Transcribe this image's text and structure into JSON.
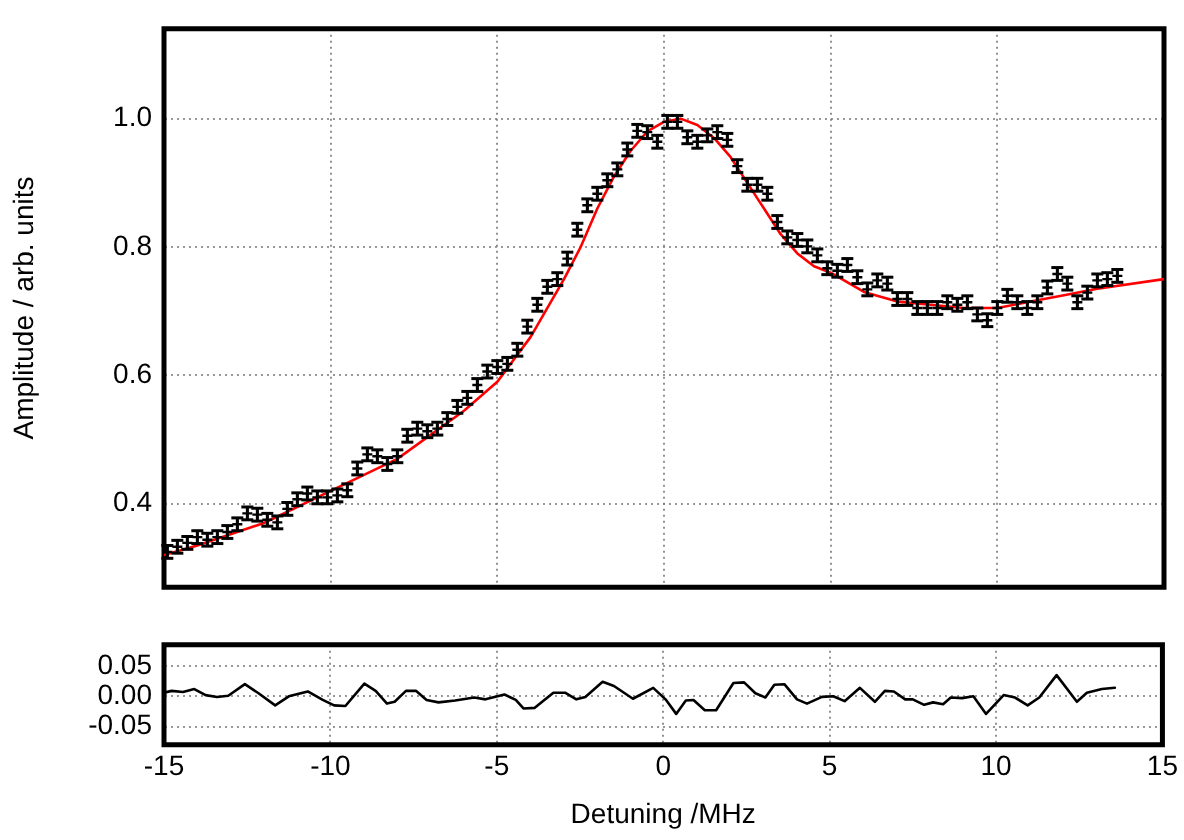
{
  "chart_data": [
    {
      "type": "scatter",
      "ylabel": "Amplitude / arb. units",
      "xlim": [
        -15,
        15
      ],
      "xticks": [
        -15,
        -10,
        -5,
        0,
        5,
        10,
        15
      ],
      "ylim": [
        0.27,
        1.14
      ],
      "yticks": [
        0.4,
        0.6,
        0.8,
        {
          "value": 1,
          "label": "1.0"
        }
      ],
      "tick_labels": "y",
      "grid": true,
      "series": [
        {
          "type": "scatter",
          "color": "#000000",
          "marker": "cross",
          "x": [
            -14.9,
            -14.6,
            -14.3,
            -14.0,
            -13.7,
            -13.4,
            -13.1,
            -12.8,
            -12.5,
            -12.2,
            -11.9,
            -11.6,
            -11.3,
            -11.0,
            -10.7,
            -10.4,
            -10.1,
            -9.8,
            -9.5,
            -9.2,
            -8.9,
            -8.6,
            -8.3,
            -8.0,
            -7.7,
            -7.4,
            -7.1,
            -6.8,
            -6.5,
            -6.2,
            -5.9,
            -5.6,
            -5.3,
            -5.0,
            -4.7,
            -4.4,
            -4.1,
            -3.8,
            -3.5,
            -3.2,
            -2.9,
            -2.6,
            -2.3,
            -2.0,
            -1.7,
            -1.4,
            -1.1,
            -0.8,
            -0.5,
            -0.2,
            0.1,
            0.4,
            0.7,
            1.0,
            1.3,
            1.6,
            1.9,
            2.2,
            2.5,
            2.8,
            3.1,
            3.4,
            3.7,
            4.0,
            4.3,
            4.6,
            4.9,
            5.2,
            5.5,
            5.8,
            6.1,
            6.4,
            6.7,
            7.0,
            7.3,
            7.6,
            7.9,
            8.2,
            8.5,
            8.8,
            9.1,
            9.4,
            9.7,
            10.0,
            10.3,
            10.6,
            10.9,
            11.2,
            11.5,
            11.8,
            12.1,
            12.4,
            12.7,
            13.0,
            13.3,
            13.6
          ],
          "values": [
            0.325,
            0.333,
            0.339,
            0.348,
            0.344,
            0.348,
            0.356,
            0.368,
            0.385,
            0.383,
            0.375,
            0.371,
            0.392,
            0.407,
            0.416,
            0.41,
            0.41,
            0.413,
            0.421,
            0.455,
            0.477,
            0.474,
            0.462,
            0.474,
            0.506,
            0.517,
            0.513,
            0.517,
            0.532,
            0.551,
            0.565,
            0.585,
            0.606,
            0.613,
            0.618,
            0.64,
            0.676,
            0.71,
            0.738,
            0.75,
            0.782,
            0.827,
            0.865,
            0.883,
            0.904,
            0.921,
            0.952,
            0.981,
            0.979,
            0.964,
            0.995,
            0.995,
            0.971,
            0.964,
            0.974,
            0.979,
            0.967,
            0.926,
            0.897,
            0.897,
            0.883,
            0.839,
            0.815,
            0.811,
            0.801,
            0.787,
            0.767,
            0.763,
            0.772,
            0.753,
            0.734,
            0.748,
            0.743,
            0.719,
            0.719,
            0.705,
            0.705,
            0.705,
            0.714,
            0.71,
            0.714,
            0.695,
            0.686,
            0.705,
            0.724,
            0.714,
            0.705,
            0.714,
            0.737,
            0.758,
            0.743,
            0.714,
            0.729,
            0.748,
            0.75,
            0.755
          ],
          "errors": [
            0.01,
            0.01,
            0.01,
            0.01,
            0.01,
            0.01,
            0.01,
            0.01,
            0.01,
            0.01,
            0.01,
            0.01,
            0.01,
            0.01,
            0.01,
            0.01,
            0.01,
            0.01,
            0.01,
            0.01,
            0.01,
            0.01,
            0.01,
            0.01,
            0.01,
            0.01,
            0.01,
            0.01,
            0.01,
            0.01,
            0.01,
            0.01,
            0.01,
            0.01,
            0.01,
            0.01,
            0.01,
            0.01,
            0.01,
            0.01,
            0.01,
            0.01,
            0.01,
            0.01,
            0.01,
            0.01,
            0.01,
            0.01,
            0.01,
            0.01,
            0.01,
            0.01,
            0.01,
            0.01,
            0.01,
            0.01,
            0.01,
            0.01,
            0.01,
            0.01,
            0.01,
            0.01,
            0.01,
            0.01,
            0.01,
            0.01,
            0.01,
            0.01,
            0.01,
            0.01,
            0.01,
            0.01,
            0.01,
            0.01,
            0.01,
            0.01,
            0.01,
            0.01,
            0.01,
            0.01,
            0.01,
            0.01,
            0.01,
            0.01,
            0.01,
            0.01,
            0.01,
            0.01,
            0.01,
            0.01,
            0.01,
            0.01,
            0.01,
            0.01,
            0.01,
            0.01
          ]
        },
        {
          "type": "line",
          "color": "#ff0000",
          "x": [
            -15,
            -14,
            -12,
            -10,
            -8,
            -6,
            -5,
            -4,
            -3,
            -2.5,
            -2,
            -1.5,
            -1,
            -0.5,
            0,
            0.5,
            1,
            1.5,
            2,
            2.5,
            3,
            3.5,
            4,
            4.5,
            5,
            6,
            7,
            8,
            9,
            10,
            11,
            12,
            13,
            15
          ],
          "values": [
            0.32,
            0.335,
            0.37,
            0.42,
            0.47,
            0.545,
            0.59,
            0.66,
            0.75,
            0.8,
            0.86,
            0.91,
            0.95,
            0.98,
            0.995,
            1.0,
            0.99,
            0.97,
            0.94,
            0.9,
            0.86,
            0.82,
            0.79,
            0.77,
            0.76,
            0.73,
            0.715,
            0.71,
            0.705,
            0.705,
            0.715,
            0.725,
            0.735,
            0.75
          ]
        }
      ]
    },
    {
      "type": "line",
      "xlabel": "Detuning /MHz",
      "xlim": [
        -15,
        15
      ],
      "xticks": [
        -15,
        -10,
        -5,
        0,
        5,
        10,
        15
      ],
      "ylim": [
        -0.08,
        0.085
      ],
      "yticks": [
        {
          "value": 0.05,
          "label": "0.05"
        },
        {
          "value": 0,
          "label": "0.00"
        },
        {
          "value": -0.05,
          "label": "-0.05"
        }
      ],
      "grid": true,
      "series": [
        {
          "color": "#000000",
          "x": [
            -15.0,
            -14.77,
            -14.43,
            -14.09,
            -13.75,
            -13.41,
            -13.07,
            -12.57,
            -12.16,
            -11.66,
            -11.25,
            -10.68,
            -10.23,
            -9.89,
            -9.55,
            -8.98,
            -8.64,
            -8.3,
            -8.07,
            -7.73,
            -7.43,
            -7.11,
            -6.75,
            -6.25,
            -5.68,
            -5.34,
            -4.77,
            -4.43,
            -4.2,
            -3.86,
            -3.3,
            -2.95,
            -2.61,
            -2.34,
            -1.82,
            -1.48,
            -0.91,
            -0.3,
            0.07,
            0.39,
            0.68,
            0.91,
            1.25,
            1.59,
            2.11,
            2.43,
            2.77,
            3.07,
            3.34,
            3.64,
            4.02,
            4.32,
            4.77,
            5.11,
            5.45,
            5.91,
            6.36,
            6.66,
            6.93,
            7.27,
            7.5,
            7.84,
            8.11,
            8.41,
            8.64,
            8.98,
            9.32,
            9.7,
            10.23,
            10.57,
            10.95,
            11.3,
            11.82,
            12.43,
            12.73,
            13.18,
            13.57
          ],
          "values": [
            0.006,
            0.009,
            0.007,
            0.012,
            0.002,
            -0.001,
            0.001,
            0.02,
            0.005,
            -0.015,
            0.0,
            0.008,
            -0.006,
            -0.015,
            -0.016,
            0.021,
            0.009,
            -0.012,
            -0.009,
            0.009,
            0.009,
            -0.006,
            -0.01,
            -0.007,
            -0.002,
            -0.005,
            0.003,
            -0.006,
            -0.02,
            -0.019,
            0.006,
            0.006,
            -0.005,
            -0.001,
            0.024,
            0.017,
            -0.004,
            0.014,
            -0.005,
            -0.029,
            -0.007,
            -0.006,
            -0.023,
            -0.023,
            0.022,
            0.023,
            0.005,
            -0.002,
            0.019,
            0.02,
            -0.005,
            -0.012,
            -0.001,
            0.0,
            -0.008,
            0.014,
            -0.009,
            0.009,
            0.008,
            -0.005,
            -0.005,
            -0.014,
            -0.01,
            -0.013,
            -0.002,
            -0.003,
            0.0,
            -0.029,
            0.002,
            -0.002,
            -0.015,
            -0.002,
            0.035,
            -0.009,
            0.006,
            0.012,
            0.014
          ]
        }
      ]
    }
  ]
}
